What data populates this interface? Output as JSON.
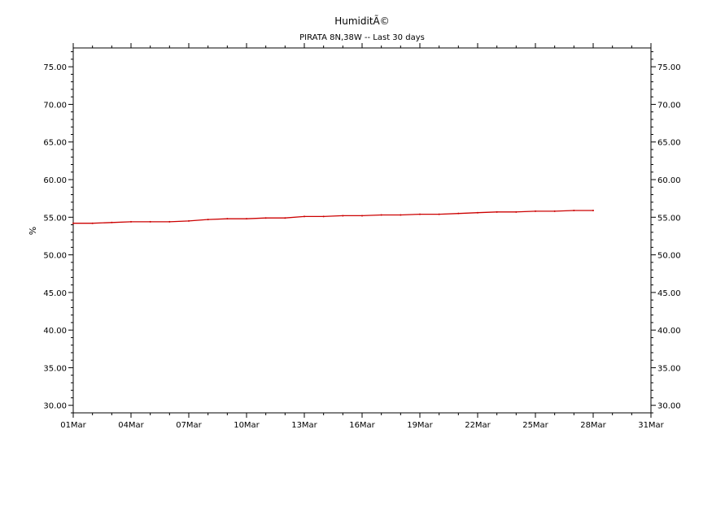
{
  "chart_data": {
    "type": "line",
    "title": "HumiditÃ©",
    "subtitle": "PIRATA 8N,38W -- Last 30 days",
    "ylabel": "%",
    "xlabel": "",
    "ylim": [
      29,
      77.5
    ],
    "xlim_days": [
      0,
      30
    ],
    "yticks": [
      "30.00",
      "35.00",
      "40.00",
      "45.00",
      "50.00",
      "55.00",
      "60.00",
      "65.00",
      "70.00",
      "75.00"
    ],
    "ytick_values": [
      30,
      35,
      40,
      45,
      50,
      55,
      60,
      65,
      70,
      75
    ],
    "xticks": [
      "01Mar",
      "04Mar",
      "07Mar",
      "10Mar",
      "13Mar",
      "16Mar",
      "19Mar",
      "22Mar",
      "25Mar",
      "28Mar",
      "31Mar"
    ],
    "xtick_days": [
      0,
      3,
      6,
      9,
      12,
      15,
      18,
      21,
      24,
      27,
      30
    ],
    "series": [
      {
        "color": "#cc0000",
        "x_days": [
          0,
          1,
          2,
          3,
          4,
          5,
          6,
          7,
          8,
          9,
          10,
          11,
          12,
          13,
          14,
          15,
          16,
          17,
          18,
          19,
          20,
          21,
          22,
          23,
          24,
          25,
          26,
          27
        ],
        "values": [
          54.2,
          54.2,
          54.3,
          54.4,
          54.4,
          54.4,
          54.5,
          54.7,
          54.8,
          54.8,
          54.9,
          54.9,
          55.1,
          55.1,
          55.2,
          55.2,
          55.3,
          55.3,
          55.4,
          55.4,
          55.5,
          55.6,
          55.7,
          55.7,
          55.8,
          55.8,
          55.9,
          55.9
        ]
      }
    ],
    "grid": false,
    "legend": "none"
  }
}
